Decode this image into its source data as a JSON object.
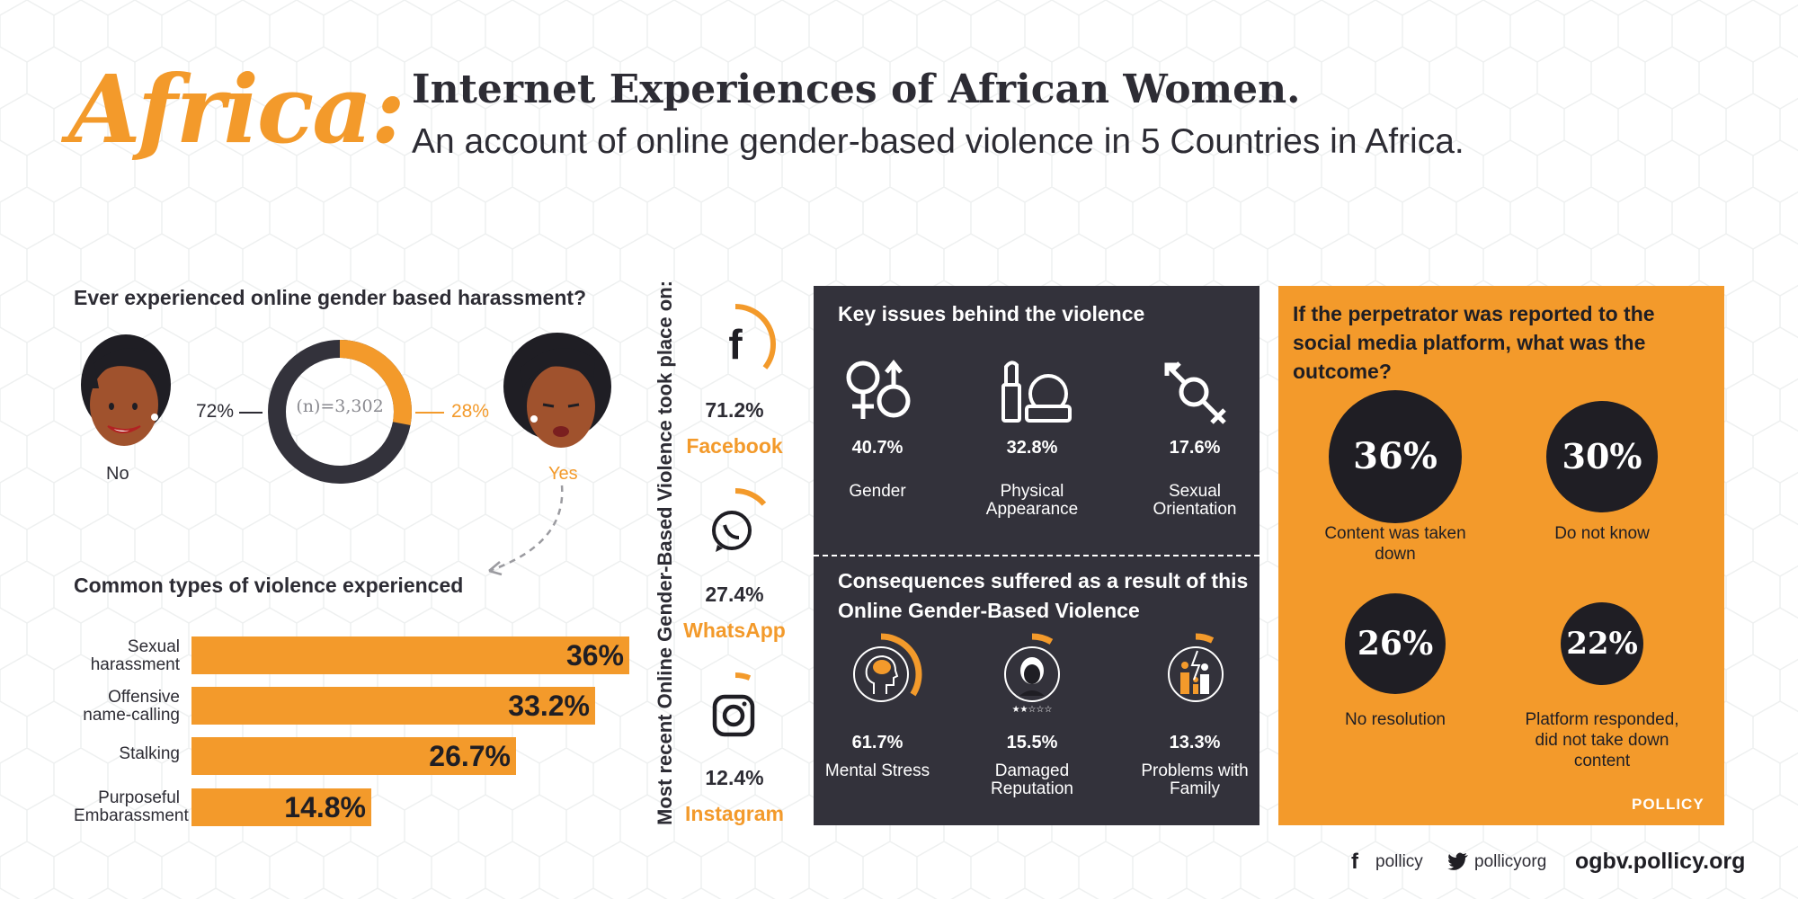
{
  "header": {
    "region": "Africa:",
    "title": "Internet Experiences of African Women.",
    "subtitle": "An account of online gender-based violence in 5 Countries in Africa."
  },
  "harassment": {
    "question": "Ever experienced online gender based harassment?",
    "sample": "(n)=3,302",
    "no_label": "No",
    "no_pct": "72%",
    "yes_label": "Yes",
    "yes_pct": "28%",
    "no_value": 72,
    "yes_value": 28
  },
  "violence_types": {
    "heading": "Common types of violence experienced",
    "items": [
      {
        "label": "Sexual harassment",
        "value_label": "36%",
        "value": 36
      },
      {
        "label": "Offensive name-calling",
        "value_label": "33.2%",
        "value": 33.2
      },
      {
        "label": "Stalking",
        "value_label": "26.7%",
        "value": 26.7
      },
      {
        "label": "Purposeful Embarassment",
        "value_label": "14.8%",
        "value": 14.8
      }
    ]
  },
  "platforms": {
    "heading": "Most recent Online Gender-Based Violence took place on:",
    "items": [
      {
        "name": "Facebook",
        "pct": "71.2%",
        "value": 71.2,
        "icon": "facebook-icon"
      },
      {
        "name": "WhatsApp",
        "pct": "27.4%",
        "value": 27.4,
        "icon": "whatsapp-icon"
      },
      {
        "name": "Instagram",
        "pct": "12.4%",
        "value": 12.4,
        "icon": "instagram-icon"
      }
    ]
  },
  "key_issues": {
    "heading": "Key issues behind the violence",
    "items": [
      {
        "label": "Gender",
        "pct": "40.7%",
        "icon": "gender-symbols-icon"
      },
      {
        "label": "Physical Appearance",
        "pct": "32.8%",
        "icon": "makeup-icon"
      },
      {
        "label": "Sexual Orientation",
        "pct": "17.6%",
        "icon": "transgender-symbol-icon"
      }
    ]
  },
  "consequences": {
    "heading_line1": "Consequences suffered as a result of this",
    "heading_line2": "Online Gender-Based Violence",
    "items": [
      {
        "label": "Mental Stress",
        "pct": "61.7%",
        "value": 61.7,
        "icon": "brain-head-icon"
      },
      {
        "label": "Damaged Reputation",
        "pct": "15.5%",
        "value": 15.5,
        "icon": "woman-rating-icon"
      },
      {
        "label": "Problems with Family",
        "pct": "13.3%",
        "value": 13.3,
        "icon": "broken-family-icon"
      }
    ]
  },
  "outcome": {
    "question": "If the perpetrator was reported to the social media platform, what was the outcome?",
    "items": [
      {
        "pct": "36%",
        "label": "Content was taken down"
      },
      {
        "pct": "30%",
        "label": "Do not know"
      },
      {
        "pct": "26%",
        "label": "No resolution"
      },
      {
        "pct": "22%",
        "label": "Platform responded, did not take down content"
      }
    ],
    "brand": "POLLICY"
  },
  "footer": {
    "facebook": "pollicy",
    "twitter": "pollicyorg",
    "url": "ogbv.pollicy.org"
  },
  "colors": {
    "accent": "#f39a2b",
    "dark": "#33323b",
    "text": "#2d2c34",
    "black": "#1f1e24"
  }
}
